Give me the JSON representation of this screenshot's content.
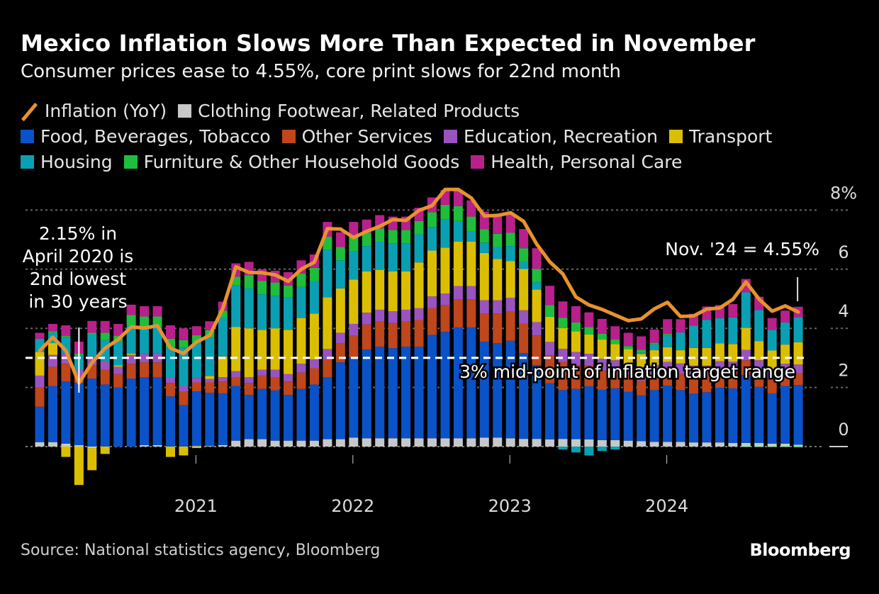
{
  "title": "Mexico Inflation Slows More Than Expected in November",
  "subtitle": "Consumer prices ease to 4.55%, core print slows for 22nd month",
  "legend": [
    {
      "label": "Inflation (YoY)",
      "type": "line",
      "color": "#e8922e"
    },
    {
      "label": "Clothing Footwear, Related Products",
      "color": "#c8c8c8"
    },
    {
      "label": "Food, Beverages, Tobacco",
      "color": "#0a52c8"
    },
    {
      "label": "Other Services",
      "color": "#c0461c"
    },
    {
      "label": "Education, Recreation",
      "color": "#9a54c0"
    },
    {
      "label": "Transport",
      "color": "#dcbe00"
    },
    {
      "label": "Housing",
      "color": "#0aa0b4"
    },
    {
      "label": "Furniture & Other Household Goods",
      "color": "#1ebe3c"
    },
    {
      "label": "Health, Personal Care",
      "color": "#b8208c"
    }
  ],
  "footer": {
    "source": "Source: National statistics agency, Bloomberg",
    "logo": "Bloomberg"
  },
  "chart_data": {
    "type": "bar",
    "stacked": true,
    "title": "Mexico Inflation Slows More Than Expected in November",
    "xlabel": "",
    "ylabel": "",
    "ylim": [
      -1.2,
      8.5
    ],
    "y_ticks": [
      0,
      2,
      4,
      6,
      8
    ],
    "y_tick_labels": [
      "0",
      "2",
      "4",
      "6",
      "8%"
    ],
    "x_ticks": [
      {
        "label": "2021",
        "index": 12
      },
      {
        "label": "2022",
        "index": 24
      },
      {
        "label": "2023",
        "index": 36
      },
      {
        "label": "2024",
        "index": 48
      }
    ],
    "categories": [
      "2020-01",
      "2020-02",
      "2020-03",
      "2020-04",
      "2020-05",
      "2020-06",
      "2020-07",
      "2020-08",
      "2020-09",
      "2020-10",
      "2020-11",
      "2020-12",
      "2021-01",
      "2021-02",
      "2021-03",
      "2021-04",
      "2021-05",
      "2021-06",
      "2021-07",
      "2021-08",
      "2021-09",
      "2021-10",
      "2021-11",
      "2021-12",
      "2022-01",
      "2022-02",
      "2022-03",
      "2022-04",
      "2022-05",
      "2022-06",
      "2022-07",
      "2022-08",
      "2022-09",
      "2022-10",
      "2022-11",
      "2022-12",
      "2023-01",
      "2023-02",
      "2023-03",
      "2023-04",
      "2023-05",
      "2023-06",
      "2023-07",
      "2023-08",
      "2023-09",
      "2023-10",
      "2023-11",
      "2023-12",
      "2024-01",
      "2024-02",
      "2024-03",
      "2024-04",
      "2024-05",
      "2024-06",
      "2024-07",
      "2024-08",
      "2024-09",
      "2024-10",
      "2024-11"
    ],
    "line": {
      "name": "Inflation (YoY)",
      "values": [
        3.24,
        3.7,
        3.25,
        2.15,
        2.84,
        3.33,
        3.62,
        4.05,
        4.01,
        4.09,
        3.33,
        3.15,
        3.54,
        3.76,
        4.67,
        6.08,
        5.89,
        5.88,
        5.81,
        5.59,
        6.0,
        6.24,
        7.37,
        7.36,
        7.07,
        7.28,
        7.45,
        7.68,
        7.65,
        7.99,
        8.15,
        8.7,
        8.7,
        8.41,
        7.8,
        7.82,
        7.91,
        7.62,
        6.85,
        6.25,
        5.84,
        5.06,
        4.79,
        4.64,
        4.45,
        4.26,
        4.32,
        4.66,
        4.88,
        4.4,
        4.42,
        4.65,
        4.69,
        4.98,
        5.57,
        4.99,
        4.58,
        4.76,
        4.55
      ]
    },
    "series": [
      {
        "name": "Clothing Footwear, Related Products",
        "values": [
          0.15,
          0.15,
          0.1,
          0.05,
          -0.05,
          0.0,
          0.0,
          0.0,
          0.05,
          0.05,
          0.0,
          0.0,
          0.02,
          0.02,
          0.05,
          0.2,
          0.25,
          0.25,
          0.2,
          0.2,
          0.2,
          0.2,
          0.25,
          0.25,
          0.3,
          0.28,
          0.28,
          0.28,
          0.28,
          0.28,
          0.28,
          0.28,
          0.28,
          0.28,
          0.3,
          0.3,
          0.28,
          0.26,
          0.26,
          0.24,
          0.26,
          0.25,
          0.24,
          0.22,
          0.22,
          0.2,
          0.18,
          0.16,
          0.16,
          0.16,
          0.14,
          0.14,
          0.14,
          0.12,
          0.12,
          0.12,
          0.1,
          0.1,
          0.06
        ]
      },
      {
        "name": "Food, Beverages, Tobacco",
        "values": [
          1.2,
          1.9,
          2.1,
          2.1,
          2.3,
          2.1,
          2.0,
          2.3,
          2.3,
          2.3,
          1.7,
          1.4,
          1.85,
          1.8,
          1.75,
          1.85,
          1.5,
          1.7,
          1.7,
          1.55,
          1.75,
          1.9,
          2.1,
          2.6,
          2.7,
          3.0,
          3.1,
          3.05,
          3.1,
          3.1,
          3.5,
          3.6,
          3.75,
          3.75,
          3.25,
          3.2,
          3.3,
          2.9,
          2.5,
          1.9,
          1.65,
          1.7,
          1.8,
          1.7,
          1.75,
          1.65,
          1.55,
          1.75,
          1.9,
          1.75,
          1.65,
          1.7,
          1.85,
          1.85,
          2.3,
          1.9,
          1.7,
          1.95,
          2.02
        ]
      },
      {
        "name": "Other Services",
        "values": [
          0.65,
          0.65,
          0.6,
          0.2,
          0.45,
          0.5,
          0.45,
          0.5,
          0.5,
          0.5,
          0.45,
          0.45,
          0.3,
          0.35,
          0.4,
          0.3,
          0.4,
          0.45,
          0.45,
          0.45,
          0.55,
          0.55,
          0.6,
          0.65,
          0.75,
          0.85,
          0.85,
          0.85,
          0.85,
          0.9,
          0.9,
          0.9,
          0.95,
          0.95,
          0.95,
          1.0,
          1.0,
          1.0,
          1.0,
          0.95,
          0.95,
          0.8,
          0.7,
          0.65,
          0.6,
          0.55,
          0.5,
          0.5,
          0.45,
          0.55,
          0.6,
          0.55,
          0.55,
          0.55,
          0.5,
          0.55,
          0.5,
          0.45,
          0.4
        ]
      },
      {
        "name": "Education, Recreation",
        "values": [
          0.4,
          0.4,
          0.35,
          0.25,
          0.3,
          0.3,
          0.25,
          0.3,
          0.3,
          0.3,
          0.2,
          0.2,
          0.15,
          0.12,
          0.15,
          0.2,
          0.2,
          0.2,
          0.25,
          0.25,
          0.3,
          0.3,
          0.35,
          0.35,
          0.4,
          0.4,
          0.4,
          0.4,
          0.4,
          0.4,
          0.4,
          0.4,
          0.45,
          0.45,
          0.45,
          0.45,
          0.45,
          0.45,
          0.45,
          0.45,
          0.45,
          0.45,
          0.4,
          0.4,
          0.35,
          0.35,
          0.35,
          0.35,
          0.35,
          0.35,
          0.35,
          0.35,
          0.35,
          0.35,
          0.35,
          0.35,
          0.3,
          0.3,
          0.3
        ]
      },
      {
        "name": "Transport",
        "values": [
          0.8,
          0.4,
          -0.35,
          -1.3,
          -0.75,
          -0.25,
          0.05,
          0.05,
          0.0,
          0.0,
          -0.35,
          -0.3,
          -0.05,
          0.1,
          0.7,
          1.5,
          1.65,
          1.35,
          1.4,
          1.5,
          1.55,
          1.55,
          1.75,
          1.5,
          1.5,
          1.4,
          1.35,
          1.35,
          1.3,
          1.55,
          1.55,
          1.55,
          1.5,
          1.5,
          1.6,
          1.4,
          1.25,
          1.4,
          1.1,
          0.85,
          0.7,
          0.7,
          0.65,
          0.65,
          0.55,
          0.55,
          0.55,
          0.5,
          0.5,
          0.45,
          0.6,
          0.6,
          0.6,
          0.6,
          0.75,
          0.65,
          0.65,
          0.65,
          0.75
        ]
      },
      {
        "name": "Housing",
        "values": [
          0.45,
          0.35,
          0.55,
          0.5,
          0.75,
          0.7,
          0.8,
          0.95,
          0.9,
          0.9,
          1.0,
          1.3,
          1.2,
          1.3,
          1.3,
          1.4,
          1.35,
          1.2,
          1.1,
          1.1,
          1.05,
          1.1,
          1.6,
          0.95,
          0.95,
          0.85,
          0.95,
          0.95,
          0.95,
          0.95,
          0.8,
          0.95,
          0.7,
          0.35,
          0.35,
          0.4,
          0.5,
          0.25,
          0.25,
          0.0,
          -0.1,
          -0.2,
          -0.3,
          -0.15,
          -0.1,
          0.0,
          0.05,
          0.2,
          0.4,
          0.6,
          0.75,
          0.95,
          0.85,
          0.9,
          1.2,
          1.05,
          0.7,
          0.75,
          0.85
        ]
      },
      {
        "name": "Furniture & Other Household Goods",
        "values": [
          0.0,
          0.05,
          0.05,
          0.05,
          0.05,
          0.25,
          0.2,
          0.35,
          0.35,
          0.35,
          0.3,
          0.25,
          0.25,
          0.25,
          0.25,
          0.3,
          0.45,
          0.45,
          0.45,
          0.4,
          0.45,
          0.45,
          0.45,
          0.45,
          0.5,
          0.45,
          0.45,
          0.45,
          0.45,
          0.45,
          0.5,
          0.5,
          0.5,
          0.5,
          0.45,
          0.45,
          0.45,
          0.45,
          0.45,
          0.4,
          0.35,
          0.3,
          0.25,
          0.2,
          0.15,
          0.1,
          0.1,
          0.05,
          0.05,
          0.0,
          0.0,
          0.0,
          0.0,
          0.0,
          -0.02,
          -0.02,
          -0.02,
          -0.02,
          -0.03
        ]
      },
      {
        "name": "Health, Personal Care",
        "values": [
          0.2,
          0.25,
          0.35,
          0.4,
          0.4,
          0.4,
          0.4,
          0.35,
          0.35,
          0.35,
          0.45,
          0.4,
          0.3,
          0.3,
          0.3,
          0.45,
          0.45,
          0.4,
          0.4,
          0.45,
          0.45,
          0.45,
          0.5,
          0.5,
          0.5,
          0.45,
          0.45,
          0.45,
          0.45,
          0.45,
          0.5,
          0.5,
          0.55,
          0.55,
          0.6,
          0.6,
          0.65,
          0.65,
          0.7,
          0.65,
          0.55,
          0.55,
          0.5,
          0.5,
          0.45,
          0.45,
          0.45,
          0.45,
          0.5,
          0.45,
          0.4,
          0.45,
          0.45,
          0.45,
          0.45,
          0.45,
          0.4,
          0.4,
          0.35
        ]
      }
    ],
    "reference_line": {
      "value": 3,
      "label": "3% mid-point of inflation target range",
      "style": "dashed"
    },
    "annotations": [
      {
        "text": [
          "2.15% in",
          "April 2020 is",
          "2nd lowest",
          "in 30 years"
        ],
        "index": 3
      },
      {
        "text": [
          "Nov. '24 = 4.55%"
        ],
        "index": 58
      }
    ],
    "grid": true,
    "legend_position": "top"
  }
}
